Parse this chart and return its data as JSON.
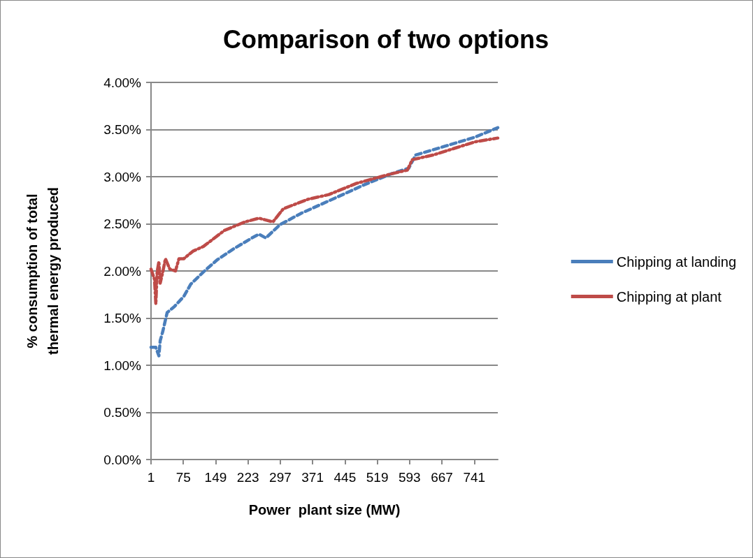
{
  "chart_data": {
    "type": "line",
    "title": "Comparison of two options",
    "xlabel": "Power  plant size (MW)",
    "ylabel": "% consumption of total\nthermal energy produced",
    "xlim": [
      1,
      795
    ],
    "xticks": [
      1,
      75,
      149,
      223,
      297,
      371,
      445,
      519,
      593,
      667,
      741
    ],
    "ylim": [
      0,
      4
    ],
    "yticks": [
      {
        "value": 0,
        "label": "0.00%"
      },
      {
        "value": 0.5,
        "label": "0.50%"
      },
      {
        "value": 1,
        "label": "1.00%"
      },
      {
        "value": 1.5,
        "label": "1.50%"
      },
      {
        "value": 2,
        "label": "2.00%"
      },
      {
        "value": 2.5,
        "label": "2.50%"
      },
      {
        "value": 3,
        "label": "3.00%"
      },
      {
        "value": 3.5,
        "label": "3.50%"
      },
      {
        "value": 4,
        "label": "4.00%"
      }
    ],
    "grid": "y",
    "legend": "right",
    "marker": "none",
    "series": [
      {
        "name": "Chipping at landing",
        "color": "#4a7ebb",
        "line_style": "dashed",
        "x": [
          1,
          12,
          19,
          22,
          28,
          38,
          54,
          76,
          92,
          121,
          153,
          192,
          232,
          248,
          264,
          296,
          344,
          392,
          440,
          487,
          551,
          591,
          607,
          679,
          743,
          795
        ],
        "values": [
          1.19,
          1.19,
          1.1,
          1.26,
          1.36,
          1.56,
          1.62,
          1.73,
          1.86,
          1.99,
          2.12,
          2.24,
          2.35,
          2.39,
          2.35,
          2.49,
          2.61,
          2.71,
          2.81,
          2.91,
          3.03,
          3.09,
          3.23,
          3.33,
          3.42,
          3.52
        ]
      },
      {
        "name": "Chipping at plant",
        "color": "#be4b48",
        "line_style": "dashdot",
        "x": [
          1,
          9,
          12,
          15,
          19,
          22,
          28,
          34,
          44,
          57,
          65,
          76,
          97,
          121,
          169,
          216,
          248,
          280,
          304,
          360,
          408,
          472,
          527,
          551,
          588,
          599,
          647,
          695,
          743,
          795
        ],
        "values": [
          2.02,
          1.91,
          1.65,
          1.99,
          2.1,
          1.87,
          1.99,
          2.13,
          2.02,
          2.0,
          2.13,
          2.13,
          2.21,
          2.26,
          2.43,
          2.52,
          2.56,
          2.52,
          2.66,
          2.76,
          2.81,
          2.93,
          3.0,
          3.03,
          3.07,
          3.18,
          3.23,
          3.3,
          3.37,
          3.41
        ]
      }
    ]
  }
}
